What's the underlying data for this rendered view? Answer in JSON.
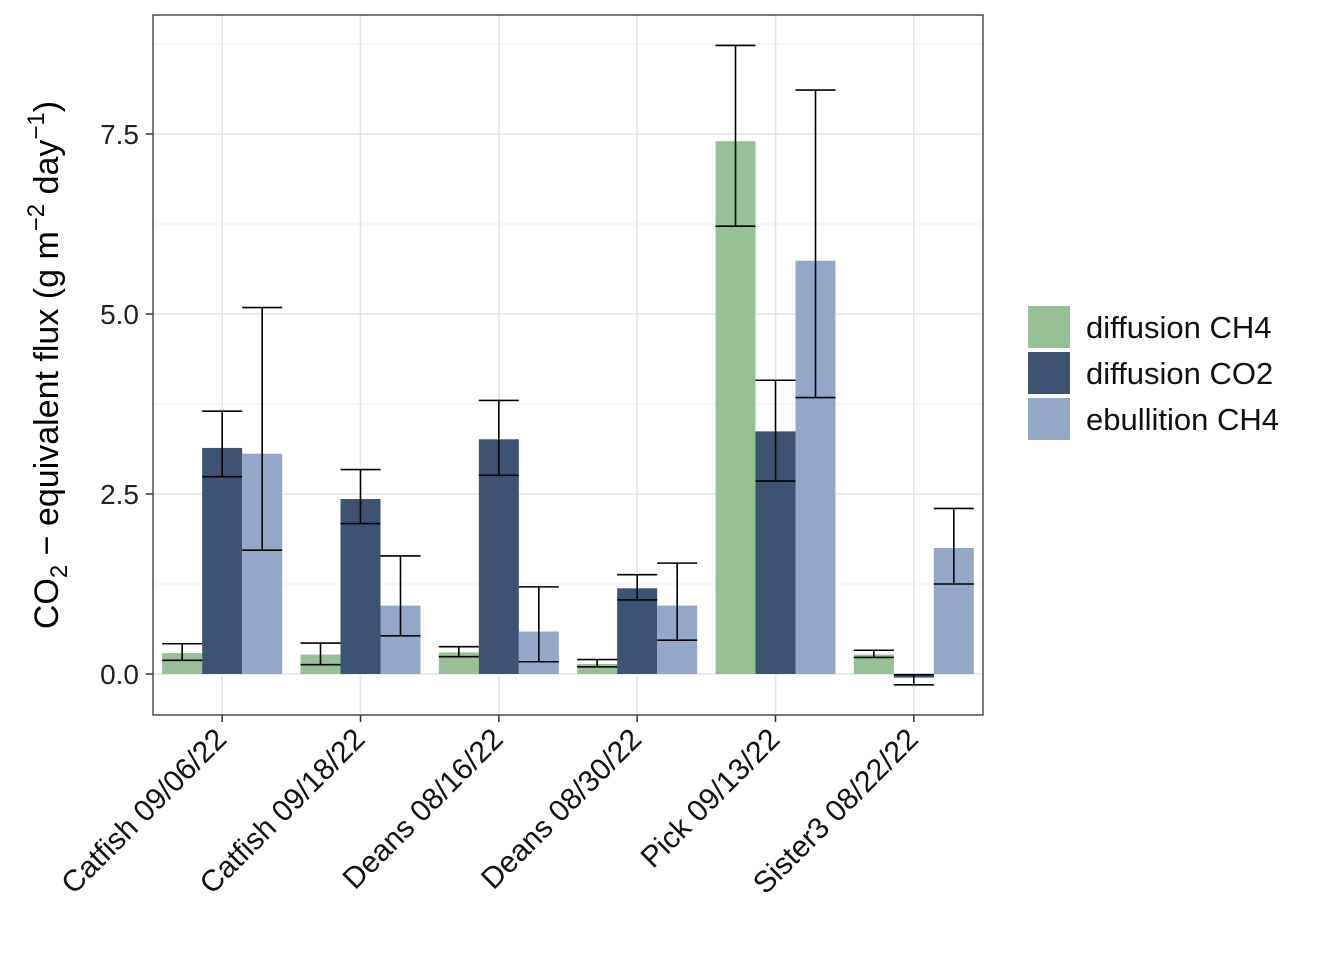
{
  "chart_data": {
    "type": "bar",
    "title": "",
    "xlabel": "",
    "ylabel": {
      "prefix": "CO",
      "sub": "2",
      "mid": " − equivalent flux (g m",
      "sup1": "−2",
      "mid2": " day",
      "sup2": "−1",
      "suffix": ")"
    },
    "ylim": [
      -0.55,
      9.2
    ],
    "yticks": [
      0.0,
      2.5,
      5.0,
      7.5
    ],
    "ytick_labels": [
      "0.0",
      "2.5",
      "5.0",
      "7.5"
    ],
    "grid": true,
    "legend_position": "right",
    "categories": [
      "Catfish 09/06/22",
      "Catfish 09/18/22",
      "Deans 08/16/22",
      "Deans 08/30/22",
      "Pick 09/13/22",
      "Sister3 08/22/22"
    ],
    "series": [
      {
        "name": "diffusion CH4",
        "color": "#96c196",
        "values": [
          0.29,
          0.27,
          0.3,
          0.14,
          7.4,
          0.27
        ],
        "err_low": [
          0.19,
          0.13,
          0.24,
          0.1,
          6.22,
          0.23
        ],
        "err_high": [
          0.42,
          0.43,
          0.38,
          0.2,
          8.73,
          0.33
        ]
      },
      {
        "name": "diffusion CO2",
        "color": "#3e5272",
        "values": [
          3.14,
          2.43,
          3.26,
          1.19,
          3.37,
          -0.05
        ],
        "err_low": [
          2.74,
          2.09,
          2.76,
          1.03,
          2.68,
          -0.15
        ],
        "err_high": [
          3.65,
          2.84,
          3.8,
          1.38,
          4.08,
          -0.01
        ]
      },
      {
        "name": "ebullition CH4",
        "color": "#94a7c6",
        "values": [
          3.06,
          0.95,
          0.59,
          0.95,
          5.74,
          1.75
        ],
        "err_low": [
          1.72,
          0.53,
          0.17,
          0.47,
          3.84,
          1.25
        ],
        "err_high": [
          5.09,
          1.64,
          1.21,
          1.54,
          8.11,
          2.3
        ]
      }
    ]
  }
}
